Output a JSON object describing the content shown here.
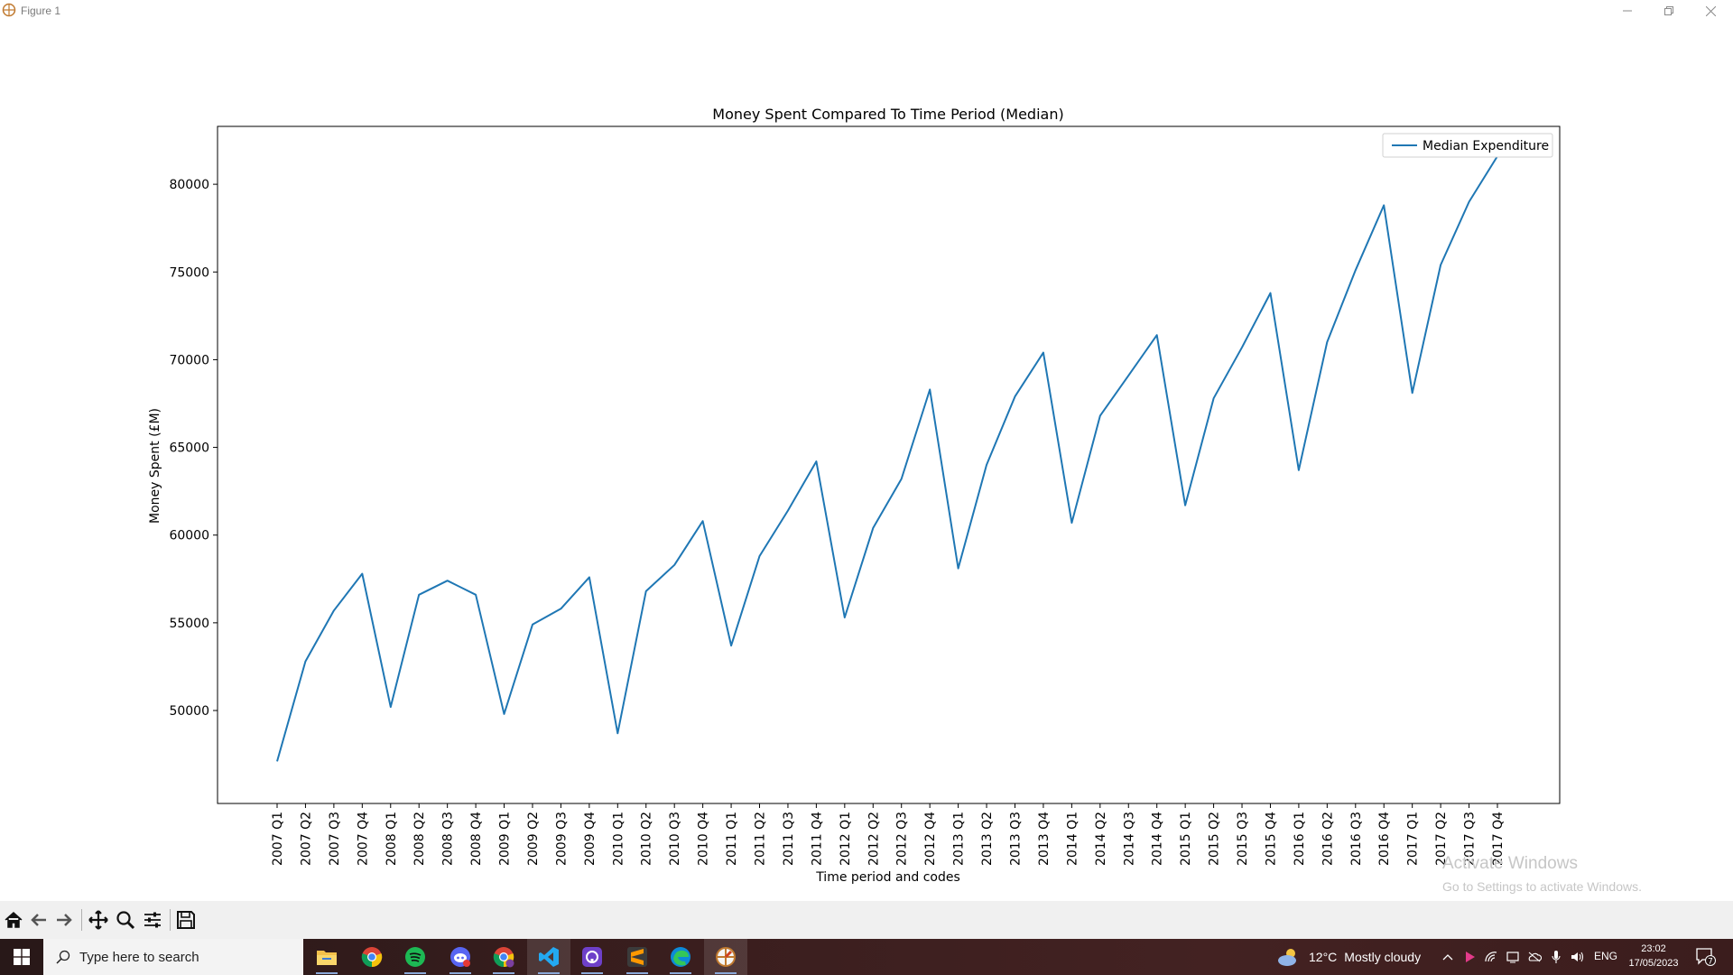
{
  "window": {
    "title": "Figure 1"
  },
  "chart_data": {
    "type": "line",
    "title": "Money Spent Compared To Time Period (Median)",
    "xlabel": "Time period and codes",
    "ylabel": "Money Spent (£M)",
    "ylim": [
      44700,
      83300
    ],
    "yticks": [
      50000,
      55000,
      60000,
      65000,
      70000,
      75000,
      80000
    ],
    "grid": false,
    "legend_position": "top-right",
    "categories": [
      "2007 Q1",
      "2007 Q2",
      "2007 Q3",
      "2007 Q4",
      "2008 Q1",
      "2008 Q2",
      "2008 Q3",
      "2008 Q4",
      "2009 Q1",
      "2009 Q2",
      "2009 Q3",
      "2009 Q4",
      "2010 Q1",
      "2010 Q2",
      "2010 Q3",
      "2010 Q4",
      "2011 Q1",
      "2011 Q2",
      "2011 Q3",
      "2011 Q4",
      "2012 Q1",
      "2012 Q2",
      "2012 Q3",
      "2012 Q4",
      "2013 Q1",
      "2013 Q2",
      "2013 Q3",
      "2013 Q4",
      "2014 Q1",
      "2014 Q2",
      "2014 Q3",
      "2014 Q4",
      "2015 Q1",
      "2015 Q2",
      "2015 Q3",
      "2015 Q4",
      "2016 Q1",
      "2016 Q2",
      "2016 Q3",
      "2016 Q4",
      "2017 Q1",
      "2017 Q2",
      "2017 Q3",
      "2017 Q4"
    ],
    "series": [
      {
        "name": "Median Expenditure",
        "color": "#1f77b4",
        "values": [
          47100,
          52800,
          55700,
          57800,
          50200,
          56600,
          57400,
          56600,
          49800,
          54900,
          55800,
          57600,
          48700,
          56800,
          58300,
          60800,
          53700,
          58800,
          61400,
          64200,
          55300,
          60400,
          63200,
          68300,
          58100,
          64000,
          67900,
          70400,
          60700,
          66800,
          69100,
          71400,
          61700,
          67800,
          70700,
          73800,
          63700,
          71000,
          75100,
          78800,
          68100,
          75400,
          79000,
          81600
        ]
      }
    ]
  },
  "toolbar": {
    "buttons": [
      "home-icon",
      "back-arrow-icon",
      "forward-arrow-icon",
      "pan-icon",
      "zoom-icon",
      "configure-subplots-icon",
      "save-icon"
    ]
  },
  "watermark": {
    "title": "Activate Windows",
    "subtitle": "Go to Settings to activate Windows."
  },
  "taskbar": {
    "search_placeholder": "Type here to search",
    "apps": [
      "file-explorer-icon",
      "chrome-icon",
      "spotify-icon",
      "discord-icon",
      "chrome-profile-icon",
      "vscode-icon",
      "github-desktop-icon",
      "sublime-text-icon",
      "edge-icon",
      "python-figure-icon"
    ],
    "weather_temp": "12°C",
    "weather_text": "Mostly cloudy",
    "language": "ENG",
    "time": "23:02",
    "date": "17/05/2023",
    "notification_count": "7"
  }
}
